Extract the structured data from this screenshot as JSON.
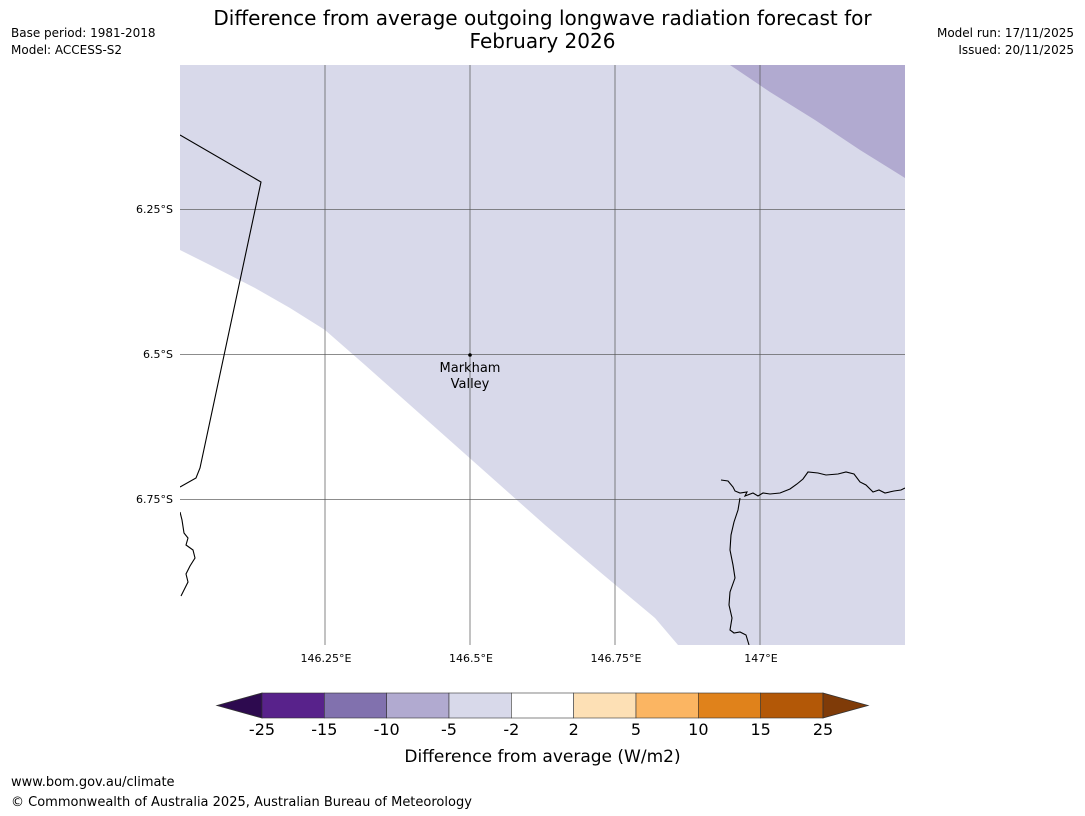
{
  "header": {
    "title_line1": "Difference from average outgoing longwave radiation forecast for",
    "title_line2": "February 2026",
    "base_period": "Base period: 1981-2018",
    "model": "Model: ACCESS-S2",
    "model_run": "Model run: 17/11/2025",
    "issued": "Issued: 20/11/2025"
  },
  "map": {
    "extent": {
      "lon_min": 146.0,
      "lon_max": 147.25,
      "lat_min": -7.0,
      "lat_max": -6.0
    },
    "latitude_labels": [
      "6.25°S",
      "6.5°S",
      "6.75°S"
    ],
    "longitude_labels": [
      "146.25°E",
      "146.5°E",
      "146.75°E",
      "147°E"
    ],
    "location": {
      "name_line1": "Markham",
      "name_line2": "Valley",
      "lat": -6.5,
      "lon": 146.5
    },
    "colors": {
      "band_minus5_minus2": "#d8d9ea",
      "band_minus10_minus5": "#b1aad0",
      "band_minus2_2": "#ffffff",
      "gridline": "#555555",
      "coastline": "#000000"
    }
  },
  "colorbar": {
    "ticks": [
      "-25",
      "-15",
      "-10",
      "-5",
      "-2",
      "2",
      "5",
      "10",
      "15",
      "25"
    ],
    "bins": [
      {
        "from": -25,
        "to": -15,
        "color": "#58228b"
      },
      {
        "from": -15,
        "to": -10,
        "color": "#8171ae"
      },
      {
        "from": -10,
        "to": -5,
        "color": "#b1aad0"
      },
      {
        "from": -5,
        "to": -2,
        "color": "#d8d9ea"
      },
      {
        "from": -2,
        "to": 2,
        "color": "#ffffff"
      },
      {
        "from": 2,
        "to": 5,
        "color": "#fde0b5"
      },
      {
        "from": 5,
        "to": 10,
        "color": "#fbb562"
      },
      {
        "from": 10,
        "to": 15,
        "color": "#e0821b"
      },
      {
        "from": 15,
        "to": 25,
        "color": "#b35807"
      }
    ],
    "under_color": "#2d0a4f",
    "over_color": "#7f3b08",
    "label": "Difference from average (W/m2)"
  },
  "footer": {
    "url": "www.bom.gov.au/climate",
    "copyright": "© Commonwealth of Australia 2025, Australian Bureau of Meteorology"
  }
}
